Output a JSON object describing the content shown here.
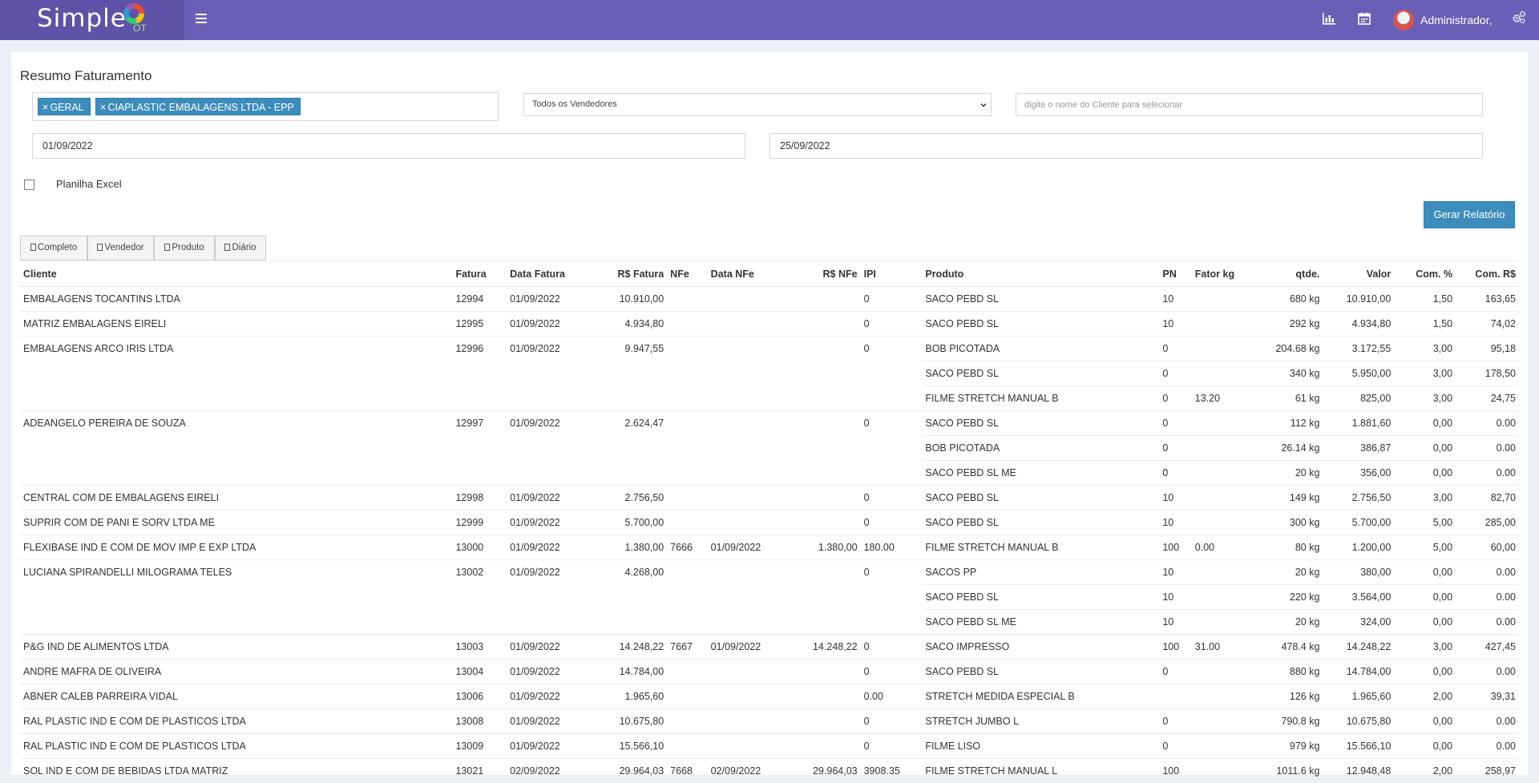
{
  "app": {
    "brand_main": "Simple",
    "brand_sub": "OT",
    "user_name": "Administrador,"
  },
  "colors": {
    "topbar": "#6a5fb6",
    "brand_bg": "#5e53a8",
    "primary": "#3c8dbc"
  },
  "icons": [
    "menu-icon",
    "bar-chart-icon",
    "calendar-icon",
    "avatar",
    "gears-icon",
    "pdf-icon",
    "chevron-down-icon"
  ],
  "page": {
    "title": "Resumo Faturamento"
  },
  "filters": {
    "tags": [
      "GERAL",
      "CIAPLASTIC EMBALAGENS LTDA - EPP"
    ],
    "vendor_selected": "Todos os Vendedores",
    "client_placeholder": "digite o nome do Cliente para selecionar",
    "client_value": "",
    "date_start": "01/09/2022",
    "date_end": "25/09/2022",
    "excel_label": "Planilha Excel",
    "excel_checked": false,
    "generate_label": "Gerar Relatório"
  },
  "report_tabs": [
    "Completo",
    "Vendedor",
    "Produto",
    "Diário"
  ],
  "table": {
    "headers": [
      "Cliente",
      "Fatura",
      "Data Fatura",
      "R$ Fatura",
      "NFe",
      "Data NFe",
      "R$ NFe",
      "IPI",
      "Produto",
      "PN",
      "Fator kg",
      "qtde.",
      "Valor",
      "Com. %",
      "Com. R$"
    ],
    "rows": [
      [
        "EMBALAGENS TOCANTINS LTDA",
        "12994",
        "01/09/2022",
        "10.910,00",
        "",
        "",
        "",
        "0",
        "SACO PEBD SL",
        "10",
        "",
        "680 kg",
        "10.910,00",
        "1,50",
        "163,65"
      ],
      [
        "MATRIZ EMBALAGENS EIRELI",
        "12995",
        "01/09/2022",
        "4.934,80",
        "",
        "",
        "",
        "0",
        "SACO PEBD SL",
        "10",
        "",
        "292 kg",
        "4.934,80",
        "1,50",
        "74,02"
      ],
      [
        "EMBALAGENS ARCO IRIS LTDA",
        "12996",
        "01/09/2022",
        "9.947,55",
        "",
        "",
        "",
        "0",
        "BOB PICOTADA",
        "0",
        "",
        "204.68 kg",
        "3.172,55",
        "3,00",
        "95,18"
      ],
      [
        "",
        "",
        "",
        "",
        "",
        "",
        "",
        "",
        "SACO PEBD SL",
        "0",
        "",
        "340 kg",
        "5.950,00",
        "3,00",
        "178,50"
      ],
      [
        "",
        "",
        "",
        "",
        "",
        "",
        "",
        "",
        "FILME STRETCH MANUAL B",
        "0",
        "13.20",
        "61 kg",
        "825,00",
        "3,00",
        "24,75"
      ],
      [
        "ADEANGELO PEREIRA DE SOUZA",
        "12997",
        "01/09/2022",
        "2.624,47",
        "",
        "",
        "",
        "0",
        "SACO PEBD SL",
        "0",
        "",
        "112 kg",
        "1.881,60",
        "0,00",
        "0.00"
      ],
      [
        "",
        "",
        "",
        "",
        "",
        "",
        "",
        "",
        "BOB PICOTADA",
        "0",
        "",
        "26.14 kg",
        "386,87",
        "0,00",
        "0.00"
      ],
      [
        "",
        "",
        "",
        "",
        "",
        "",
        "",
        "",
        "SACO PEBD SL ME",
        "0",
        "",
        "20 kg",
        "356,00",
        "0,00",
        "0.00"
      ],
      [
        "CENTRAL COM DE EMBALAGENS EIRELI",
        "12998",
        "01/09/2022",
        "2.756,50",
        "",
        "",
        "",
        "0",
        "SACO PEBD SL",
        "10",
        "",
        "149 kg",
        "2.756,50",
        "3,00",
        "82,70"
      ],
      [
        "SUPRIR COM DE PANI E SORV LTDA ME",
        "12999",
        "01/09/2022",
        "5.700,00",
        "",
        "",
        "",
        "0",
        "SACO PEBD SL",
        "10",
        "",
        "300 kg",
        "5.700,00",
        "5,00",
        "285,00"
      ],
      [
        "FLEXIBASE IND E COM DE MOV IMP E EXP LTDA",
        "13000",
        "01/09/2022",
        "1.380,00",
        "7666",
        "01/09/2022",
        "1.380,00",
        "180.00",
        "FILME STRETCH MANUAL B",
        "100",
        "0.00",
        "80 kg",
        "1.200,00",
        "5,00",
        "60,00"
      ],
      [
        "LUCIANA SPIRANDELLI MILOGRAMA TELES",
        "13002",
        "01/09/2022",
        "4.268,00",
        "",
        "",
        "",
        "0",
        "SACOS PP",
        "10",
        "",
        "20 kg",
        "380,00",
        "0,00",
        "0.00"
      ],
      [
        "",
        "",
        "",
        "",
        "",
        "",
        "",
        "",
        "SACO PEBD SL",
        "10",
        "",
        "220 kg",
        "3.564,00",
        "0,00",
        "0.00"
      ],
      [
        "",
        "",
        "",
        "",
        "",
        "",
        "",
        "",
        "SACO PEBD SL ME",
        "10",
        "",
        "20 kg",
        "324,00",
        "0,00",
        "0.00"
      ],
      [
        "P&G IND DE ALIMENTOS LTDA",
        "13003",
        "01/09/2022",
        "14.248,22",
        "7667",
        "01/09/2022",
        "14.248,22",
        "0",
        "SACO IMPRESSO",
        "100",
        "31.00",
        "478.4 kg",
        "14.248,22",
        "3,00",
        "427,45"
      ],
      [
        "ANDRE MAFRA DE OLIVEIRA",
        "13004",
        "01/09/2022",
        "14.784,00",
        "",
        "",
        "",
        "0",
        "SACO PEBD SL",
        "0",
        "",
        "880 kg",
        "14.784,00",
        "0,00",
        "0.00"
      ],
      [
        "ABNER CALEB PARREIRA VIDAL",
        "13006",
        "01/09/2022",
        "1.965,60",
        "",
        "",
        "",
        "0.00",
        "STRETCH MEDIDA ESPECIAL B",
        "",
        "",
        "126 kg",
        "1.965,60",
        "2,00",
        "39,31"
      ],
      [
        "RAL PLASTIC IND E COM DE PLASTICOS LTDA",
        "13008",
        "01/09/2022",
        "10.675,80",
        "",
        "",
        "",
        "0",
        "STRETCH JUMBO L",
        "0",
        "",
        "790.8 kg",
        "10.675,80",
        "0,00",
        "0.00"
      ],
      [
        "RAL PLASTIC IND E COM DE PLASTICOS LTDA",
        "13009",
        "01/09/2022",
        "15.566,10",
        "",
        "",
        "",
        "0",
        "FILME LISO",
        "0",
        "",
        "979 kg",
        "15.566,10",
        "0,00",
        "0.00"
      ],
      [
        "SOL IND E COM DE BEBIDAS LTDA MATRIZ",
        "13021",
        "02/09/2022",
        "29.964,03",
        "7668",
        "02/09/2022",
        "29.964,03",
        "3908.35",
        "FILME STRETCH MANUAL L",
        "100",
        "",
        "1011.6 kg",
        "12.948,48",
        "2,00",
        "258,97"
      ]
    ]
  }
}
